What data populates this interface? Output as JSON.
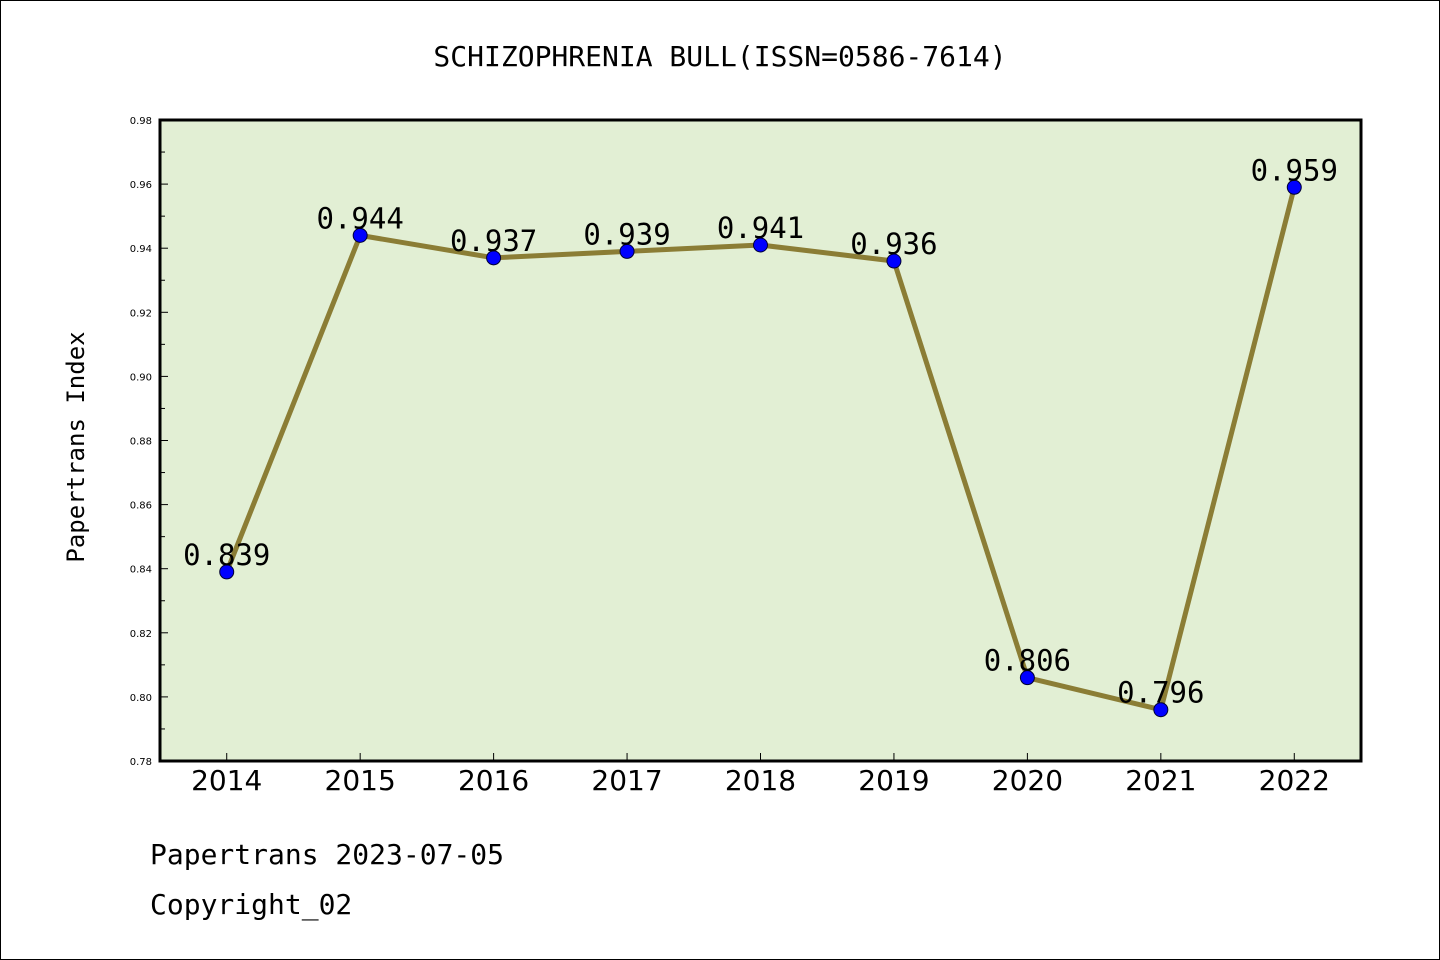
{
  "chart_data": {
    "type": "line",
    "title": "SCHIZOPHRENIA BULL(ISSN=0586-7614)",
    "xlabel": "",
    "ylabel": "Papertrans Index",
    "categories": [
      "2014",
      "2015",
      "2016",
      "2017",
      "2018",
      "2019",
      "2020",
      "2021",
      "2022"
    ],
    "series": [
      {
        "values": [
          0.839,
          0.944,
          0.937,
          0.939,
          0.941,
          0.936,
          0.806,
          0.796,
          0.959
        ],
        "labels": [
          "0.839",
          "0.944",
          "0.937",
          "0.939",
          "0.941",
          "0.936",
          "0.806",
          "0.796",
          "0.959"
        ]
      }
    ],
    "ylim": [
      0.78,
      0.98
    ],
    "yticks": [
      "0.78",
      "0.80",
      "0.82",
      "0.84",
      "0.86",
      "0.88",
      "0.90",
      "0.92",
      "0.94",
      "0.96",
      "0.98"
    ],
    "grid": false,
    "colors": {
      "plot_background": "#e2efd4",
      "line": "#8b7d35",
      "marker": "#0000ff"
    }
  },
  "footer": {
    "line1": "Papertrans 2023-07-05",
    "line2": "Copyright_02"
  }
}
